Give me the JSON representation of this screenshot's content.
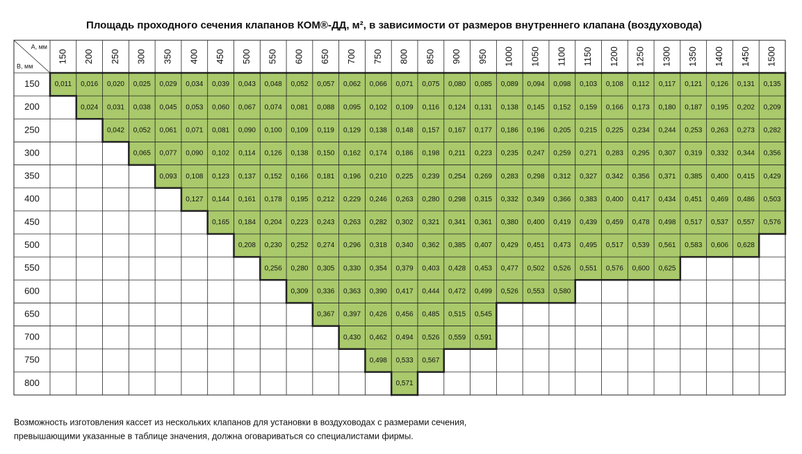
{
  "title": "Площадь проходного сечения клапанов КОМ®-ДД, м², в зависимости от размеров внутреннего клапана (воздуховода)",
  "table": {
    "corner_a": "A, мм",
    "corner_b": "B, мм",
    "columns": [
      "150",
      "200",
      "250",
      "300",
      "350",
      "400",
      "450",
      "500",
      "550",
      "600",
      "650",
      "700",
      "750",
      "800",
      "850",
      "900",
      "950",
      "1000",
      "1050",
      "1100",
      "1150",
      "1200",
      "1250",
      "1300",
      "1350",
      "1400",
      "1450",
      "1500"
    ],
    "rows": [
      {
        "label": "150",
        "cells": [
          "0,011",
          "0,016",
          "0,020",
          "0,025",
          "0,029",
          "0,034",
          "0,039",
          "0,043",
          "0,048",
          "0,052",
          "0,057",
          "0,062",
          "0,066",
          "0,071",
          "0,075",
          "0,080",
          "0,085",
          "0,089",
          "0,094",
          "0,098",
          "0,103",
          "0,108",
          "0,112",
          "0,117",
          "0,121",
          "0,126",
          "0,131",
          "0,135"
        ]
      },
      {
        "label": "200",
        "cells": [
          null,
          "0,024",
          "0,031",
          "0,038",
          "0,045",
          "0,053",
          "0,060",
          "0,067",
          "0,074",
          "0,081",
          "0,088",
          "0,095",
          "0,102",
          "0,109",
          "0,116",
          "0,124",
          "0,131",
          "0,138",
          "0,145",
          "0,152",
          "0,159",
          "0,166",
          "0,173",
          "0,180",
          "0,187",
          "0,195",
          "0,202",
          "0,209"
        ]
      },
      {
        "label": "250",
        "cells": [
          null,
          null,
          "0,042",
          "0,052",
          "0,061",
          "0,071",
          "0,081",
          "0,090",
          "0,100",
          "0,109",
          "0,119",
          "0,129",
          "0,138",
          "0,148",
          "0,157",
          "0,167",
          "0,177",
          "0,186",
          "0,196",
          "0,205",
          "0,215",
          "0,225",
          "0,234",
          "0,244",
          "0,253",
          "0,263",
          "0,273",
          "0,282"
        ]
      },
      {
        "label": "300",
        "cells": [
          null,
          null,
          null,
          "0,065",
          "0,077",
          "0,090",
          "0,102",
          "0,114",
          "0,126",
          "0,138",
          "0,150",
          "0,162",
          "0,174",
          "0,186",
          "0,198",
          "0,211",
          "0,223",
          "0,235",
          "0,247",
          "0,259",
          "0,271",
          "0,283",
          "0,295",
          "0,307",
          "0,319",
          "0,332",
          "0,344",
          "0,356"
        ]
      },
      {
        "label": "350",
        "cells": [
          null,
          null,
          null,
          null,
          "0,093",
          "0,108",
          "0,123",
          "0,137",
          "0,152",
          "0,166",
          "0,181",
          "0,196",
          "0,210",
          "0,225",
          "0,239",
          "0,254",
          "0,269",
          "0,283",
          "0,298",
          "0,312",
          "0,327",
          "0,342",
          "0,356",
          "0,371",
          "0,385",
          "0,400",
          "0,415",
          "0,429"
        ]
      },
      {
        "label": "400",
        "cells": [
          null,
          null,
          null,
          null,
          null,
          "0,127",
          "0,144",
          "0,161",
          "0,178",
          "0,195",
          "0,212",
          "0,229",
          "0,246",
          "0,263",
          "0,280",
          "0,298",
          "0,315",
          "0,332",
          "0,349",
          "0,366",
          "0,383",
          "0,400",
          "0,417",
          "0,434",
          "0,451",
          "0,469",
          "0,486",
          "0,503"
        ]
      },
      {
        "label": "450",
        "cells": [
          null,
          null,
          null,
          null,
          null,
          null,
          "0,165",
          "0,184",
          "0,204",
          "0,223",
          "0,243",
          "0,263",
          "0,282",
          "0,302",
          "0,321",
          "0,341",
          "0,361",
          "0,380",
          "0,400",
          "0,419",
          "0,439",
          "0,459",
          "0,478",
          "0,498",
          "0,517",
          "0,537",
          "0,557",
          "0,576"
        ]
      },
      {
        "label": "500",
        "cells": [
          null,
          null,
          null,
          null,
          null,
          null,
          null,
          "0,208",
          "0,230",
          "0,252",
          "0,274",
          "0,296",
          "0,318",
          "0,340",
          "0,362",
          "0,385",
          "0,407",
          "0,429",
          "0,451",
          "0,473",
          "0,495",
          "0,517",
          "0,539",
          "0,561",
          "0,583",
          "0,606",
          "0,628",
          null
        ]
      },
      {
        "label": "550",
        "cells": [
          null,
          null,
          null,
          null,
          null,
          null,
          null,
          null,
          "0,256",
          "0,280",
          "0,305",
          "0,330",
          "0,354",
          "0,379",
          "0,403",
          "0,428",
          "0,453",
          "0,477",
          "0,502",
          "0,526",
          "0,551",
          "0,576",
          "0,600",
          "0,625",
          null,
          null,
          null,
          null
        ]
      },
      {
        "label": "600",
        "cells": [
          null,
          null,
          null,
          null,
          null,
          null,
          null,
          null,
          null,
          "0,309",
          "0,336",
          "0,363",
          "0,390",
          "0,417",
          "0,444",
          "0,472",
          "0,499",
          "0,526",
          "0,553",
          "0,580",
          null,
          null,
          null,
          null,
          null,
          null,
          null,
          null
        ]
      },
      {
        "label": "650",
        "cells": [
          null,
          null,
          null,
          null,
          null,
          null,
          null,
          null,
          null,
          null,
          "0,367",
          "0,397",
          "0,426",
          "0,456",
          "0,485",
          "0,515",
          "0,545",
          null,
          null,
          null,
          null,
          null,
          null,
          null,
          null,
          null,
          null,
          null
        ]
      },
      {
        "label": "700",
        "cells": [
          null,
          null,
          null,
          null,
          null,
          null,
          null,
          null,
          null,
          null,
          null,
          "0,430",
          "0,462",
          "0,494",
          "0,526",
          "0,559",
          "0,591",
          null,
          null,
          null,
          null,
          null,
          null,
          null,
          null,
          null,
          null,
          null
        ]
      },
      {
        "label": "750",
        "cells": [
          null,
          null,
          null,
          null,
          null,
          null,
          null,
          null,
          null,
          null,
          null,
          null,
          "0,498",
          "0,533",
          "0,567",
          null,
          null,
          null,
          null,
          null,
          null,
          null,
          null,
          null,
          null,
          null,
          null,
          null
        ]
      },
      {
        "label": "800",
        "cells": [
          null,
          null,
          null,
          null,
          null,
          null,
          null,
          null,
          null,
          null,
          null,
          null,
          null,
          "0,571",
          null,
          null,
          null,
          null,
          null,
          null,
          null,
          null,
          null,
          null,
          null,
          null,
          null,
          null
        ]
      }
    ]
  },
  "footer": [
    "Возможность изготовления кассет из нескольких клапанов для установки в воздуховодах с размерами сечения,",
    "превышающими указанные в таблице значения, должна оговариваться со специалистами фирмы."
  ]
}
